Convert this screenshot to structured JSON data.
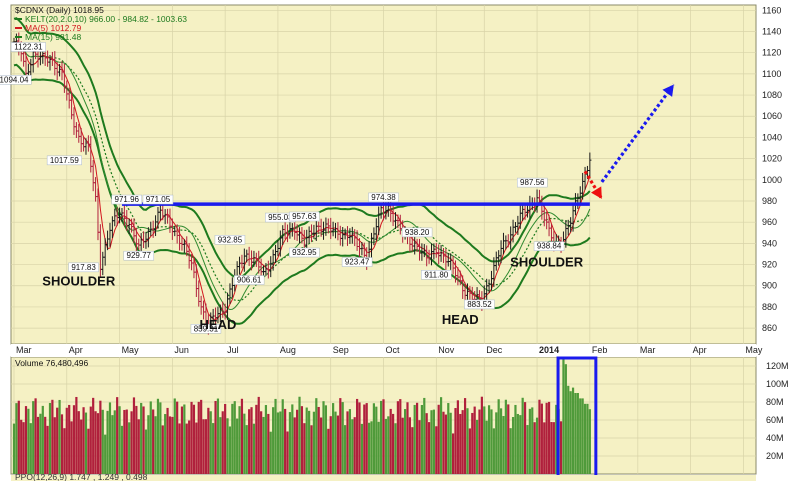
{
  "chart_data": [
    {
      "type": "candlestick",
      "symbol_line": "$CDNX (Daily) 1018.95",
      "legend": [
        {
          "text": "KELT(20,2.0,10) 966.00 - 984.82 - 1003.63",
          "color": "#1e7a1e"
        },
        {
          "text": "MA(5) 1012.79",
          "color": "#d2161e"
        },
        {
          "text": "MA(15) 981.48",
          "color": "#1e7a1e"
        }
      ],
      "ylim": [
        845,
        1165
      ],
      "y_ticks": [
        "1160",
        "1140",
        "1120",
        "1100",
        "1080",
        "1060",
        "1040",
        "1020",
        "1000",
        "980",
        "960",
        "940",
        "920",
        "900",
        "880",
        "860"
      ],
      "y_tick_values": [
        1160,
        1140,
        1120,
        1100,
        1080,
        1060,
        1040,
        1020,
        1000,
        980,
        960,
        940,
        920,
        900,
        880,
        860
      ],
      "x_labels": [
        "Mar",
        "Apr",
        "May",
        "Jun",
        "Jul",
        "Aug",
        "Sep",
        "Oct",
        "Nov",
        "Dec",
        "2014",
        "Feb",
        "Mar",
        "Apr",
        "May"
      ],
      "price_path": [
        {
          "d": 0,
          "v": 1130
        },
        {
          "d": 3,
          "v": 1120
        },
        {
          "d": 5,
          "v": 1098
        },
        {
          "d": 8,
          "v": 1120
        },
        {
          "d": 12,
          "v": 1114
        },
        {
          "d": 16,
          "v": 1112
        },
        {
          "d": 20,
          "v": 1100
        },
        {
          "d": 24,
          "v": 1060
        },
        {
          "d": 27,
          "v": 1040
        },
        {
          "d": 31,
          "v": 1030
        },
        {
          "d": 34,
          "v": 980
        },
        {
          "d": 36,
          "v": 920
        },
        {
          "d": 40,
          "v": 955
        },
        {
          "d": 44,
          "v": 968
        },
        {
          "d": 48,
          "v": 960
        },
        {
          "d": 52,
          "v": 935
        },
        {
          "d": 56,
          "v": 950
        },
        {
          "d": 61,
          "v": 970
        },
        {
          "d": 66,
          "v": 955
        },
        {
          "d": 70,
          "v": 940
        },
        {
          "d": 74,
          "v": 920
        },
        {
          "d": 78,
          "v": 880
        },
        {
          "d": 81,
          "v": 862
        },
        {
          "d": 84,
          "v": 872
        },
        {
          "d": 88,
          "v": 880
        },
        {
          "d": 92,
          "v": 908
        },
        {
          "d": 96,
          "v": 930
        },
        {
          "d": 100,
          "v": 925
        },
        {
          "d": 104,
          "v": 910
        },
        {
          "d": 108,
          "v": 928
        },
        {
          "d": 112,
          "v": 948
        },
        {
          "d": 117,
          "v": 955
        },
        {
          "d": 121,
          "v": 940
        },
        {
          "d": 126,
          "v": 956
        },
        {
          "d": 130,
          "v": 955
        },
        {
          "d": 134,
          "v": 950
        },
        {
          "d": 140,
          "v": 948
        },
        {
          "d": 144,
          "v": 935
        },
        {
          "d": 147,
          "v": 928
        },
        {
          "d": 150,
          "v": 950
        },
        {
          "d": 153,
          "v": 970
        },
        {
          "d": 156,
          "v": 974
        },
        {
          "d": 159,
          "v": 962
        },
        {
          "d": 163,
          "v": 945
        },
        {
          "d": 168,
          "v": 938
        },
        {
          "d": 172,
          "v": 925
        },
        {
          "d": 176,
          "v": 935
        },
        {
          "d": 180,
          "v": 925
        },
        {
          "d": 184,
          "v": 912
        },
        {
          "d": 188,
          "v": 895
        },
        {
          "d": 192,
          "v": 886
        },
        {
          "d": 195,
          "v": 888
        },
        {
          "d": 199,
          "v": 910
        },
        {
          "d": 203,
          "v": 935
        },
        {
          "d": 207,
          "v": 950
        },
        {
          "d": 211,
          "v": 965
        },
        {
          "d": 215,
          "v": 975
        },
        {
          "d": 218,
          "v": 985
        },
        {
          "d": 220,
          "v": 970
        },
        {
          "d": 223,
          "v": 950
        },
        {
          "d": 226,
          "v": 940
        },
        {
          "d": 229,
          "v": 945
        },
        {
          "d": 232,
          "v": 960
        },
        {
          "d": 235,
          "v": 985
        },
        {
          "d": 238,
          "v": 1005
        },
        {
          "d": 240,
          "v": 1019
        }
      ],
      "price_labels": [
        {
          "text": "1122.31",
          "d": 6,
          "v": 1123
        },
        {
          "text": "1094.04",
          "d": 0,
          "v": 1092
        },
        {
          "text": "1017.59",
          "d": 21,
          "v": 1016
        },
        {
          "text": "971.96",
          "d": 47,
          "v": 979
        },
        {
          "text": "971.05",
          "d": 60,
          "v": 979
        },
        {
          "text": "917.83",
          "d": 29,
          "v": 915
        },
        {
          "text": "929.77",
          "d": 52,
          "v": 926
        },
        {
          "text": "932.85",
          "d": 90,
          "v": 941
        },
        {
          "text": "955.03",
          "d": 111,
          "v": 962
        },
        {
          "text": "957.63",
          "d": 121,
          "v": 963
        },
        {
          "text": "906.61",
          "d": 98,
          "v": 903
        },
        {
          "text": "932.95",
          "d": 121,
          "v": 929
        },
        {
          "text": "974.38",
          "d": 154,
          "v": 981
        },
        {
          "text": "923.47",
          "d": 143,
          "v": 920
        },
        {
          "text": "938.20",
          "d": 168,
          "v": 948
        },
        {
          "text": "911.80",
          "d": 176,
          "v": 908
        },
        {
          "text": "883.52",
          "d": 194,
          "v": 880
        },
        {
          "text": "987.56",
          "d": 216,
          "v": 995
        },
        {
          "text": "938.84",
          "d": 223,
          "v": 935
        },
        {
          "text": "859.31",
          "d": 80,
          "v": 857
        }
      ],
      "annotations": [
        {
          "text": "SHOULDER",
          "d": 27,
          "v": 900
        },
        {
          "text": "HEAD",
          "d": 85,
          "v": 859
        },
        {
          "text": "HEAD",
          "d": 186,
          "v": 864
        },
        {
          "text": "SHOULDER",
          "d": 222,
          "v": 918
        }
      ],
      "neckline": {
        "value": 977,
        "d_start": 45,
        "d_end": 240,
        "color": "#1a1aee"
      },
      "arrows": [
        {
          "color": "#ee1111",
          "from": {
            "d": 238,
            "v": 1008
          },
          "to": {
            "d": 245,
            "v": 982
          }
        },
        {
          "color": "#1a1aee",
          "from": {
            "d": 245,
            "v": 998
          },
          "to": {
            "d": 275,
            "v": 1090
          }
        }
      ]
    },
    {
      "type": "bar",
      "title": "Volume 76,480,496",
      "ylim": [
        0,
        130
      ],
      "y_ticks": [
        "120M",
        "100M",
        "80M",
        "60M",
        "40M",
        "20M"
      ],
      "y_tick_values": [
        120,
        100,
        80,
        60,
        40,
        20
      ],
      "values_unit": "M",
      "up_color": "#4f9a3a",
      "down_color": "#b0203c",
      "highlight": {
        "d_start": 228,
        "d_end": 240,
        "color": "#1a1aee"
      },
      "spike_values": [
        128,
        98,
        96,
        90,
        84,
        78
      ]
    },
    {
      "type": "line",
      "title": "PPO(12,26,9) 1.747 , 1.249 , 0.498"
    }
  ]
}
